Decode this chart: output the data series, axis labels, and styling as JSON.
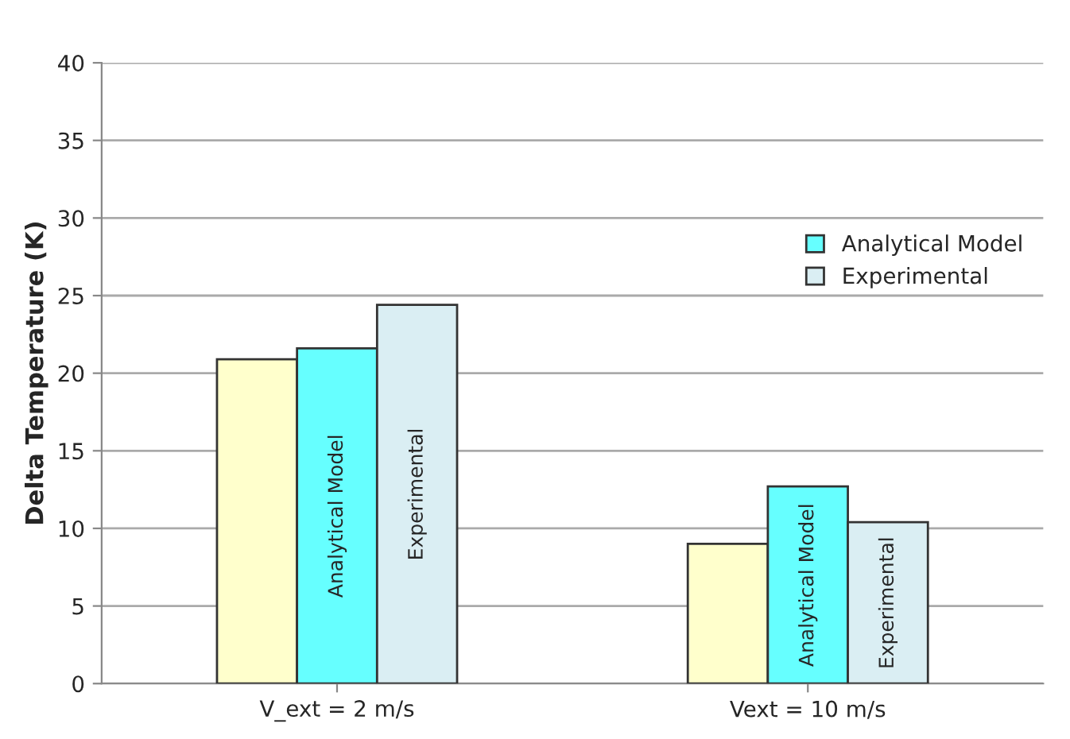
{
  "chart_data": {
    "type": "bar",
    "ylabel": "Delta Temperature (K)",
    "categories": [
      "V_ext = 2 m/s",
      "Vext = 10 m/s"
    ],
    "series": [
      {
        "color": "#ffffcc",
        "values": [
          20.9,
          9.0
        ]
      },
      {
        "name": "Analytical Model",
        "color": "#66ffff",
        "values": [
          21.6,
          12.7
        ]
      },
      {
        "name": "Experimental",
        "color": "#daeef3",
        "values": [
          24.4,
          10.4
        ]
      }
    ],
    "ylim": [
      0,
      40
    ],
    "yticks": [
      0,
      5,
      10,
      15,
      20,
      25,
      30,
      35,
      40
    ],
    "grid": "y",
    "legend": "right"
  }
}
